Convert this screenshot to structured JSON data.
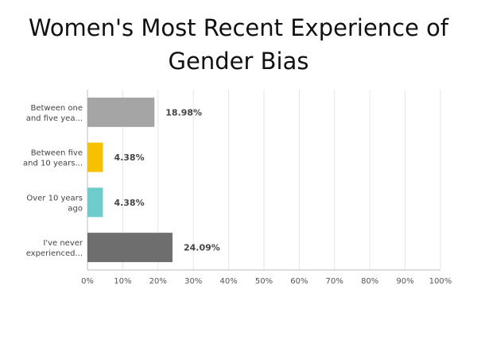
{
  "title_line1": "Women's Most Recent Experience of",
  "title_line2": "Gender Bias",
  "chart_data": {
    "type": "bar",
    "orientation": "horizontal",
    "title": "Women's Most Recent Experience of Gender Bias",
    "categories": [
      [
        "Between one",
        "and five yea..."
      ],
      [
        "Between five",
        "and 10 years..."
      ],
      [
        "Over 10 years",
        "ago"
      ],
      [
        "I've never",
        "experienced..."
      ]
    ],
    "values": [
      18.98,
      4.38,
      4.38,
      24.09
    ],
    "value_labels": [
      "18.98%",
      "4.38%",
      "4.38%",
      "24.09%"
    ],
    "colors": [
      "#a5a5a5",
      "#f7c000",
      "#6fcccc",
      "#6e6e6e"
    ],
    "xlim": [
      0,
      100
    ],
    "x_ticks": [
      "0%",
      "10%",
      "20%",
      "30%",
      "40%",
      "50%",
      "60%",
      "70%",
      "80%",
      "90%",
      "100%"
    ],
    "grid": true
  }
}
